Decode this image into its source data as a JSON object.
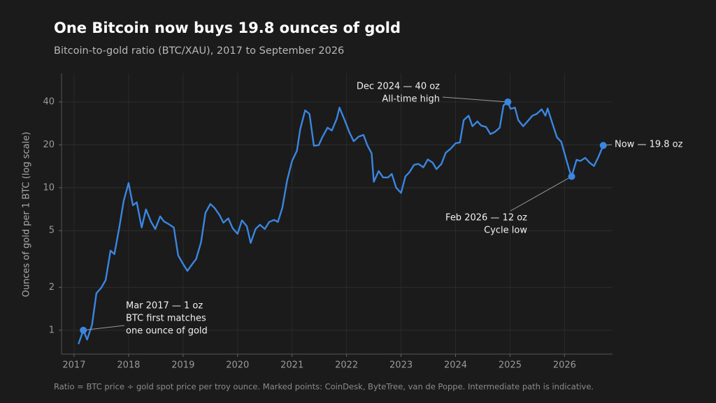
{
  "chart_data": {
    "type": "line",
    "title": "One Bitcoin now buys 19.8 ounces of gold",
    "subtitle": "Bitcoin-to-gold ratio (BTC/XAU), 2017 to September 2026",
    "y_label": "Ounces of gold per 1 BTC  (log scale)",
    "footnote": "Ratio = BTC price ÷ gold spot price per troy ounce.  Marked points: CoinDesk, ByteTree, van de Poppe.  Intermediate path is indicative.",
    "yscale": "log",
    "grid": true,
    "xlim": [
      2016.77,
      2026.88
    ],
    "ylim": [
      0.68,
      63.5
    ],
    "xticks": [
      2017,
      2018,
      2019,
      2020,
      2021,
      2022,
      2023,
      2024,
      2025,
      2026
    ],
    "yticks": [
      1,
      2,
      5,
      10,
      20,
      40
    ],
    "series": [
      {
        "name": "BTC/XAU",
        "color": "#3a86e0",
        "x": [
          2017.08,
          2017.17,
          2017.24,
          2017.33,
          2017.41,
          2017.5,
          2017.58,
          2017.67,
          2017.74,
          2017.83,
          2017.91,
          2018.0,
          2018.08,
          2018.15,
          2018.24,
          2018.32,
          2018.41,
          2018.49,
          2018.58,
          2018.65,
          2018.74,
          2018.83,
          2018.91,
          2019.0,
          2019.08,
          2019.17,
          2019.24,
          2019.33,
          2019.41,
          2019.5,
          2019.58,
          2019.67,
          2019.74,
          2019.83,
          2019.91,
          2020.0,
          2020.08,
          2020.17,
          2020.24,
          2020.33,
          2020.41,
          2020.5,
          2020.58,
          2020.67,
          2020.74,
          2020.82,
          2020.91,
          2021.0,
          2021.09,
          2021.15,
          2021.24,
          2021.32,
          2021.4,
          2021.49,
          2021.56,
          2021.65,
          2021.73,
          2021.82,
          2021.87,
          2021.97,
          2022.05,
          2022.13,
          2022.22,
          2022.31,
          2022.38,
          2022.46,
          2022.5,
          2022.59,
          2022.67,
          2022.76,
          2022.83,
          2022.91,
          2023.0,
          2023.08,
          2023.15,
          2023.24,
          2023.32,
          2023.41,
          2023.49,
          2023.58,
          2023.65,
          2023.74,
          2023.82,
          2023.91,
          2024.0,
          2024.08,
          2024.15,
          2024.24,
          2024.31,
          2024.4,
          2024.47,
          2024.56,
          2024.64,
          2024.72,
          2024.81,
          2024.88,
          2024.96,
          2025.01,
          2025.09,
          2025.15,
          2025.24,
          2025.32,
          2025.41,
          2025.49,
          2025.58,
          2025.65,
          2025.69,
          2025.78,
          2025.86,
          2025.94,
          2026.04,
          2026.09,
          2026.13,
          2026.22,
          2026.29,
          2026.38,
          2026.46,
          2026.54,
          2026.62,
          2026.71
        ],
        "values": [
          0.8,
          1,
          0.86,
          1.09,
          1.82,
          1.99,
          2.25,
          3.62,
          3.42,
          5.26,
          8.08,
          10.8,
          7.53,
          7.9,
          5.26,
          7.05,
          5.8,
          5.13,
          6.3,
          5.8,
          5.55,
          5.26,
          3.35,
          2.92,
          2.61,
          2.92,
          3.16,
          4.14,
          6.66,
          7.7,
          7.2,
          6.43,
          5.68,
          6.1,
          5.2,
          4.75,
          5.9,
          5.37,
          4.1,
          5.13,
          5.5,
          5.13,
          5.75,
          5.95,
          5.75,
          7.2,
          11.3,
          15.4,
          18.2,
          25.8,
          34.9,
          33,
          19.7,
          19.9,
          22.8,
          26.4,
          25.2,
          30.5,
          36.5,
          29.5,
          24.6,
          21.2,
          22.8,
          23.5,
          19.9,
          17.4,
          11,
          13.1,
          11.8,
          11.8,
          12.5,
          10,
          9.2,
          12,
          12.8,
          14.5,
          14.7,
          13.9,
          15.8,
          15,
          13.5,
          14.7,
          17.6,
          18.8,
          20.5,
          20.8,
          29.8,
          32,
          27,
          29.2,
          27.3,
          26.7,
          23.8,
          24.6,
          26.4,
          37.8,
          40,
          35.8,
          36.5,
          29.8,
          27,
          29.2,
          32,
          33,
          35.5,
          32,
          36,
          28,
          22.6,
          21,
          15.4,
          13.2,
          12,
          15.7,
          15.4,
          16.2,
          15,
          14.2,
          16.4,
          19.8
        ]
      }
    ],
    "annotations": [
      {
        "x": 2017.17,
        "y": 1,
        "lines": [
          "Mar 2017 — 1 oz",
          "BTC first matches",
          "one ounce of gold"
        ]
      },
      {
        "x": 2024.96,
        "y": 40,
        "lines": [
          "Dec 2024 — 40 oz",
          "All-time high"
        ]
      },
      {
        "x": 2026.13,
        "y": 12,
        "lines": [
          "Feb 2026 — 12 oz",
          "Cycle low"
        ]
      },
      {
        "x": 2026.71,
        "y": 19.8,
        "lines": [
          "Now — 19.8 oz"
        ]
      }
    ]
  }
}
